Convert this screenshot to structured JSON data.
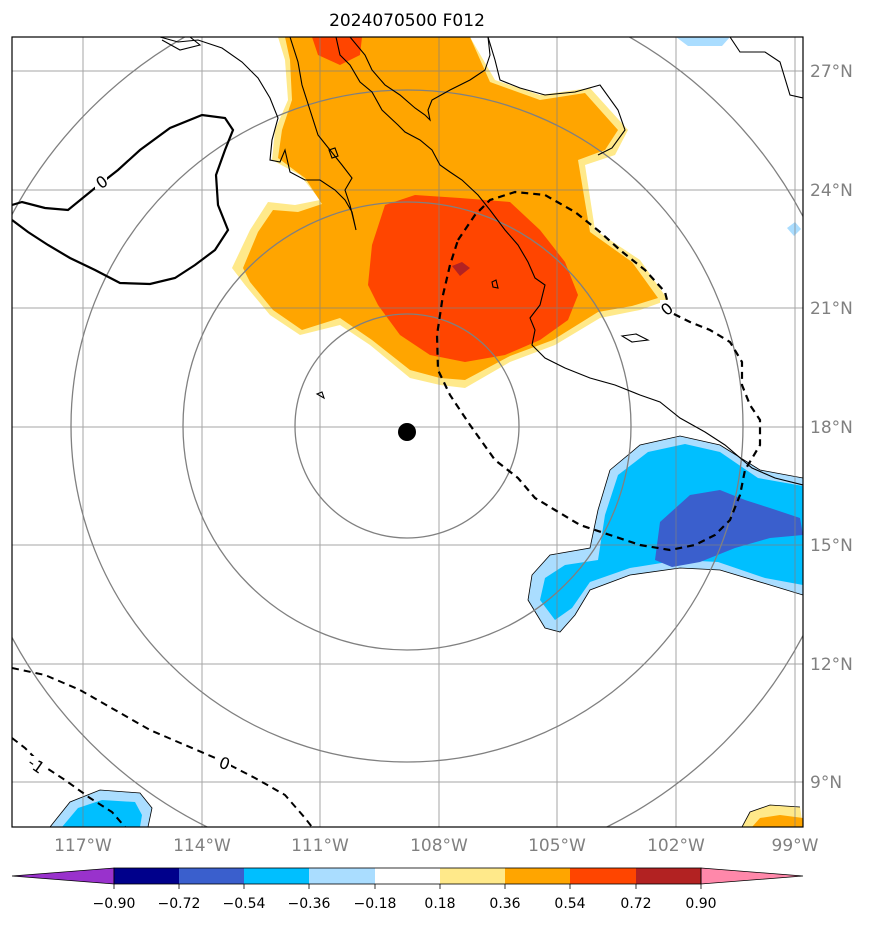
{
  "title": "2024070500 F012",
  "colors": {
    "yellow": "#ffe98a",
    "orange": "#ffa500",
    "red_orange": "#ff4500",
    "dark_red": "#b22222",
    "light_blue": "#aaddff",
    "cyan": "#00bfff",
    "medium_blue": "#3a5fcd",
    "navy": "#00008b",
    "purple": "#9932cc",
    "pink": "#ff88aa",
    "grid": "#808080",
    "coast": "#000000",
    "contour": "#000000"
  },
  "map": {
    "lon_labels": [
      "117°W",
      "114°W",
      "111°W",
      "108°W",
      "105°W",
      "102°W",
      "99°W"
    ],
    "lat_labels": [
      "27°N",
      "24°N",
      "21°N",
      "18°N",
      "15°N",
      "12°N",
      "9°N"
    ],
    "lon_values": [
      -117,
      -114,
      -111,
      -108,
      -105,
      -102,
      -99
    ],
    "lat_values": [
      27,
      24,
      21,
      18,
      15,
      12,
      9
    ],
    "extent": {
      "lon_min": -119.7,
      "lon_max": -99.6,
      "lat_min": 8.0,
      "lat_max": 28.0
    },
    "storm_center": {
      "lon": -108.8,
      "lat": 17.8
    },
    "range_rings_count": 4,
    "contour_labels": [
      "0",
      "0",
      "0",
      "-1"
    ],
    "features": [
      "range-rings",
      "lat-lon-grid",
      "coastlines",
      "filled-contours",
      "line-contours",
      "storm-center-marker"
    ]
  },
  "colorbar": {
    "tick_labels": [
      "−0.90",
      "−0.72",
      "−0.54",
      "−0.36",
      "−0.18",
      "0.18",
      "0.36",
      "0.54",
      "0.72",
      "0.90"
    ],
    "levels": [
      -0.9,
      -0.72,
      -0.54,
      -0.36,
      -0.18,
      0.18,
      0.36,
      0.54,
      0.72,
      0.9
    ],
    "segment_colors": [
      "#9932cc",
      "#00008b",
      "#3a5fcd",
      "#00bfff",
      "#aaddff",
      "#ffffff",
      "#ffe98a",
      "#ffa500",
      "#ff4500",
      "#b22222",
      "#ff88aa"
    ],
    "extend": "both"
  }
}
